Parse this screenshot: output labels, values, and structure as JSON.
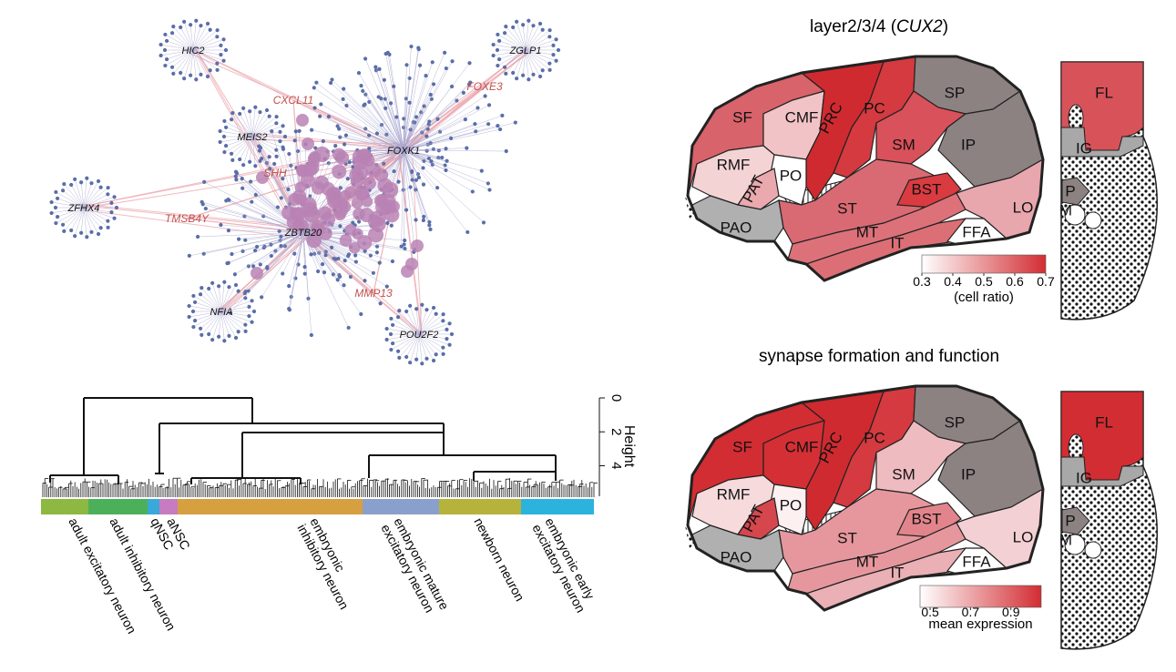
{
  "network": {
    "hubs": [
      "HIC2",
      "ZGLP1",
      "MEIS2",
      "FOXK1",
      "ZFHX4",
      "ZBTB20",
      "NFIA",
      "POU2F2"
    ],
    "genes": [
      "CXCL11",
      "FOXE3",
      "SHH",
      "TMSB4Y",
      "MMP13"
    ]
  },
  "dendrogram": {
    "axis_title": "Height",
    "ylim": [
      0,
      5.8
    ],
    "yticks": [
      0,
      2,
      4
    ],
    "groups": [
      {
        "label": [
          "adult excitatory neuron"
        ],
        "color": "#8db842"
      },
      {
        "label": [
          "adult inhibitory neuron"
        ],
        "color": "#4cb05a"
      },
      {
        "label": [
          "qNSC"
        ],
        "color": "#3aa8d8"
      },
      {
        "label": [
          "aNSC"
        ],
        "color": "#c77bc0"
      },
      {
        "label": [
          "embryonic",
          "inhibitory neuron"
        ],
        "color": "#d6a040"
      },
      {
        "label": [
          "embryonic mature",
          "excitatory neuron"
        ],
        "color": "#8aa0cc"
      },
      {
        "label": [
          "newborn neuron"
        ],
        "color": "#b5b33c"
      },
      {
        "label": [
          "embryonic early",
          "excitatory neuron"
        ],
        "color": "#2bb3de"
      }
    ]
  },
  "brain_maps": [
    {
      "title": [
        "layer2/3/4 (",
        "CUX2",
        ")"
      ],
      "regions": [
        {
          "label": "SF",
          "color": "#d8636b"
        },
        {
          "label": "CMF",
          "color": "#f2c3c6"
        },
        {
          "label": "PRC",
          "color": "#cf2a2f"
        },
        {
          "label": "PC",
          "color": "#d43a3f"
        },
        {
          "label": "SP",
          "color": "#8c8281"
        },
        {
          "label": "SM",
          "color": "#d9515a"
        },
        {
          "label": "IP",
          "color": "#8c8281"
        },
        {
          "label": "RMF",
          "color": "#f4d3d5"
        },
        {
          "label": "PO",
          "color": "#ffffff"
        },
        {
          "label": "PAT",
          "color": "#eaa9ae"
        },
        {
          "label": "PAO",
          "color": "#b0b0b0"
        },
        {
          "label": "ST",
          "color": "#d96a73"
        },
        {
          "label": "BST",
          "color": "#d93b40"
        },
        {
          "label": "MT",
          "color": "#dd7179"
        },
        {
          "label": "IT",
          "color": "#dc6f76"
        },
        {
          "label": "LO",
          "color": "#e8a6ad"
        },
        {
          "label": "FFA",
          "color": "#ffffff"
        }
      ],
      "medial": [
        {
          "label": "FL",
          "color": "#d8525a"
        },
        {
          "label": "IG",
          "color": "#a8a8a8"
        },
        {
          "label": "P",
          "color": "#8c8281"
        },
        {
          "label": "M",
          "color": "#ffffff"
        }
      ],
      "colorbar": {
        "range": [
          0.3,
          0.7
        ],
        "ticks": [
          0.3,
          0.4,
          0.5,
          0.6,
          0.7
        ],
        "label": "(cell ratio)",
        "color": "#d22d33"
      }
    },
    {
      "title": [
        "synapse formation and function"
      ],
      "regions": [
        {
          "label": "SF",
          "color": "#d22d33"
        },
        {
          "label": "CMF",
          "color": "#d32f35"
        },
        {
          "label": "PRC",
          "color": "#cf2a2f"
        },
        {
          "label": "PC",
          "color": "#d43a3f"
        },
        {
          "label": "SP",
          "color": "#8c8281"
        },
        {
          "label": "SM",
          "color": "#eebbc0"
        },
        {
          "label": "IP",
          "color": "#8c8281"
        },
        {
          "label": "RMF",
          "color": "#f6dadc"
        },
        {
          "label": "PO",
          "color": "#fdf0f1"
        },
        {
          "label": "PAT",
          "color": "#d5464d"
        },
        {
          "label": "PAO",
          "color": "#b0b0b0"
        },
        {
          "label": "ST",
          "color": "#e6979d"
        },
        {
          "label": "BST",
          "color": "#e2848b"
        },
        {
          "label": "MT",
          "color": "#e6979d"
        },
        {
          "label": "IT",
          "color": "#eab0b5"
        },
        {
          "label": "LO",
          "color": "#f3d0d3"
        },
        {
          "label": "FFA",
          "color": "#ffffff"
        }
      ],
      "medial": [
        {
          "label": "FL",
          "color": "#d22d33"
        },
        {
          "label": "IG",
          "color": "#a8a8a8"
        },
        {
          "label": "P",
          "color": "#8c8281"
        },
        {
          "label": "M",
          "color": "#ffffff"
        }
      ],
      "colorbar": {
        "range": [
          0.45,
          1.05
        ],
        "ticks": [
          0.5,
          0.7,
          0.9
        ],
        "label": "mean expression",
        "color": "#d22d33"
      }
    }
  ]
}
